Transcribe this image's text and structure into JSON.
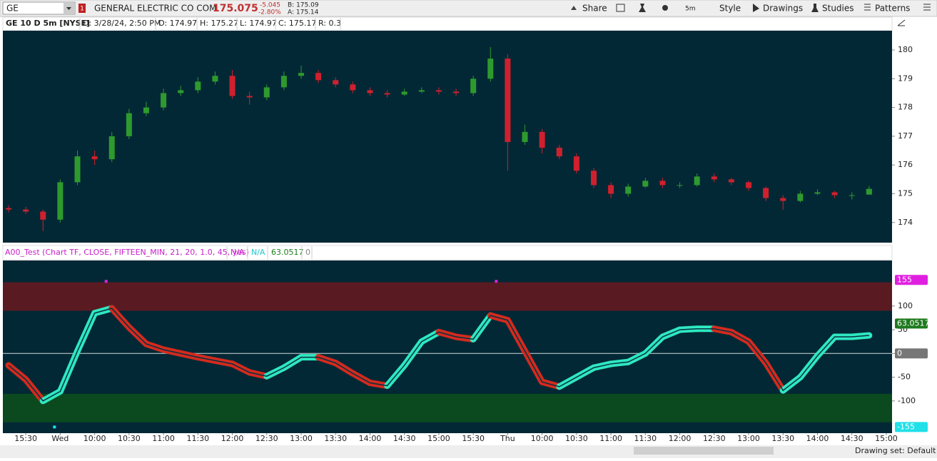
{
  "toolbar": {
    "symbol": "GE",
    "alert_count": "1",
    "company": "GENERAL ELECTRIC CO COM",
    "last": "175.075",
    "change": "-5.045",
    "change_pct": "-2.80%",
    "bid": "B: 175.09",
    "ask": "A: 175.14",
    "buttons": [
      "Share",
      "5m",
      "Style",
      "Drawings",
      "Studies",
      "Patterns"
    ]
  },
  "price_header": {
    "title": "GE 10 D 5m [NYSE]",
    "date": "D: 3/28/24, 2:50 PM",
    "open": "O: 174.97",
    "high": "H: 175.27",
    "low": "L: 174.97",
    "close": "C: 175.17",
    "range": "R: 0.3"
  },
  "study_header": {
    "title": "A00_Test (Chart TF, CLOSE, FIFTEEN_MIN, 21, 20, 1.0, 45, yes)",
    "plot1": "N/A",
    "plot2": "N/A",
    "plot3": "63.0517",
    "plot4": "0"
  },
  "status_bar": {
    "drawing_set": "Drawing set: Default"
  },
  "chart_data": [
    {
      "type": "candlestick",
      "up_color": "#2e9a2e",
      "down_color": "#d0202e",
      "x": [
        -3,
        0,
        3,
        6,
        9,
        12,
        15,
        18,
        21,
        24,
        27,
        30,
        33,
        36,
        39,
        42,
        45,
        48,
        51,
        54,
        57,
        60,
        63,
        66,
        69,
        72,
        75,
        78,
        81,
        84,
        87,
        90,
        93,
        96,
        99,
        102,
        105,
        108,
        111,
        114,
        117,
        120,
        123,
        126,
        129,
        132,
        135,
        138,
        141,
        144,
        147
      ],
      "open": [
        174.5,
        174.45,
        174.38,
        174.1,
        175.4,
        176.3,
        176.2,
        177.0,
        177.8,
        178.0,
        178.5,
        178.6,
        178.9,
        179.1,
        178.4,
        178.35,
        178.7,
        179.1,
        179.2,
        178.95,
        178.8,
        178.6,
        178.5,
        178.45,
        178.55,
        178.6,
        178.55,
        178.5,
        179.0,
        179.7,
        176.8,
        177.15,
        176.6,
        176.3,
        175.8,
        175.3,
        175.0,
        175.25,
        175.45,
        175.3,
        175.3,
        175.6,
        175.5,
        175.4,
        175.2,
        174.85,
        174.75,
        175.0,
        175.05,
        174.95,
        174.97
      ],
      "high": [
        174.6,
        174.55,
        174.45,
        175.5,
        176.5,
        176.5,
        177.15,
        177.95,
        178.2,
        178.65,
        178.75,
        179.05,
        179.25,
        179.3,
        178.55,
        178.8,
        179.25,
        179.45,
        179.3,
        179.05,
        178.9,
        178.7,
        178.6,
        178.65,
        178.7,
        178.7,
        178.65,
        179.1,
        180.1,
        179.85,
        177.4,
        177.25,
        176.7,
        176.4,
        175.9,
        175.4,
        175.35,
        175.55,
        175.55,
        175.4,
        175.7,
        175.7,
        175.55,
        175.45,
        175.25,
        174.95,
        175.1,
        175.15,
        175.1,
        175.05,
        175.27
      ],
      "low": [
        174.35,
        174.3,
        173.7,
        174.0,
        175.3,
        176.0,
        176.1,
        176.9,
        177.7,
        177.9,
        178.4,
        178.5,
        178.8,
        178.3,
        178.1,
        178.25,
        178.6,
        179.0,
        178.85,
        178.7,
        178.5,
        178.4,
        178.35,
        178.4,
        178.5,
        178.45,
        178.4,
        178.4,
        178.9,
        175.8,
        176.7,
        176.4,
        176.2,
        175.7,
        175.2,
        174.85,
        174.9,
        175.2,
        175.2,
        175.2,
        175.25,
        175.4,
        175.3,
        175.1,
        174.75,
        174.45,
        174.7,
        174.95,
        174.85,
        174.8,
        174.97
      ],
      "close": [
        174.45,
        174.38,
        174.1,
        175.4,
        176.3,
        176.2,
        177.0,
        177.8,
        178.0,
        178.5,
        178.6,
        178.9,
        179.1,
        178.4,
        178.35,
        178.7,
        179.1,
        179.2,
        178.95,
        178.8,
        178.6,
        178.5,
        178.45,
        178.55,
        178.6,
        178.55,
        178.5,
        179.0,
        179.7,
        176.8,
        177.15,
        176.6,
        176.3,
        175.8,
        175.3,
        175.0,
        175.25,
        175.45,
        175.3,
        175.3,
        175.6,
        175.5,
        175.4,
        175.2,
        174.85,
        174.75,
        175.0,
        175.05,
        174.95,
        174.95,
        175.17
      ],
      "xlim": [
        -4,
        151
      ],
      "ylim": [
        173.3,
        180.67
      ],
      "yticks": [
        174,
        175,
        176,
        177,
        178,
        179,
        180
      ]
    },
    {
      "type": "ribbon",
      "rise_color": "#2ee8c0",
      "fall_color": "#d42a1e",
      "x": [
        -3,
        0,
        3,
        6,
        9,
        12,
        15,
        18,
        21,
        24,
        27,
        30,
        33,
        36,
        39,
        42,
        45,
        48,
        51,
        54,
        57,
        60,
        63,
        66,
        69,
        72,
        75,
        78,
        81,
        84,
        87,
        90,
        93,
        96,
        99,
        102,
        105,
        108,
        111,
        114,
        117,
        120,
        123,
        126,
        129,
        132,
        135,
        138,
        141,
        144,
        147
      ],
      "values": [
        -25,
        -55,
        -100,
        -80,
        5,
        85,
        95,
        55,
        20,
        8,
        0,
        -8,
        -15,
        -22,
        -40,
        -48,
        -30,
        -8,
        -8,
        -20,
        -42,
        -62,
        -68,
        -25,
        25,
        45,
        35,
        30,
        80,
        70,
        5,
        -60,
        -70,
        -50,
        -30,
        -22,
        -18,
        0,
        35,
        50,
        52,
        52,
        45,
        25,
        -20,
        -78,
        -50,
        -5,
        35,
        35,
        38
      ],
      "zones": [
        {
          "from": 90,
          "to": 150,
          "color": "#5a1a22"
        },
        {
          "from": -85,
          "to": -145,
          "color": "#0a4a1e"
        }
      ],
      "markers": {
        "x": [
          14,
          82,
          5
        ],
        "values": [
          152,
          152,
          -155
        ],
        "colors": [
          "#e020e0",
          "#e020e0",
          "#20e0e8"
        ]
      },
      "badges": [
        155,
        63.0517,
        0,
        -155
      ],
      "badge_colors": [
        "#e020e0",
        "#1e7a1e",
        "#777777",
        "#20e0e8"
      ],
      "xlim": [
        -4,
        151
      ],
      "ylim": [
        -168,
        196
      ],
      "yticks": [
        100,
        50,
        0,
        -50,
        -100
      ],
      "xticks": [
        {
          "value": 0,
          "label": "15:30"
        },
        {
          "value": 6,
          "label": "Wed"
        },
        {
          "value": 12,
          "label": "10:00"
        },
        {
          "value": 18,
          "label": "10:30"
        },
        {
          "value": 24,
          "label": "11:00"
        },
        {
          "value": 30,
          "label": "11:30"
        },
        {
          "value": 36,
          "label": "12:00"
        },
        {
          "value": 42,
          "label": "12:30"
        },
        {
          "value": 48,
          "label": "13:00"
        },
        {
          "value": 54,
          "label": "13:30"
        },
        {
          "value": 60,
          "label": "14:00"
        },
        {
          "value": 66,
          "label": "14:30"
        },
        {
          "value": 72,
          "label": "15:00"
        },
        {
          "value": 78,
          "label": "15:30"
        },
        {
          "value": 84,
          "label": "Thu"
        },
        {
          "value": 90,
          "label": "10:00"
        },
        {
          "value": 96,
          "label": "10:30"
        },
        {
          "value": 102,
          "label": "11:00"
        },
        {
          "value": 108,
          "label": "11:30"
        },
        {
          "value": 114,
          "label": "12:00"
        },
        {
          "value": 120,
          "label": "12:30"
        },
        {
          "value": 126,
          "label": "13:00"
        },
        {
          "value": 132,
          "label": "13:30"
        },
        {
          "value": 138,
          "label": "14:00"
        },
        {
          "value": 144,
          "label": "14:30"
        },
        {
          "value": 150,
          "label": "15:00"
        }
      ]
    }
  ]
}
